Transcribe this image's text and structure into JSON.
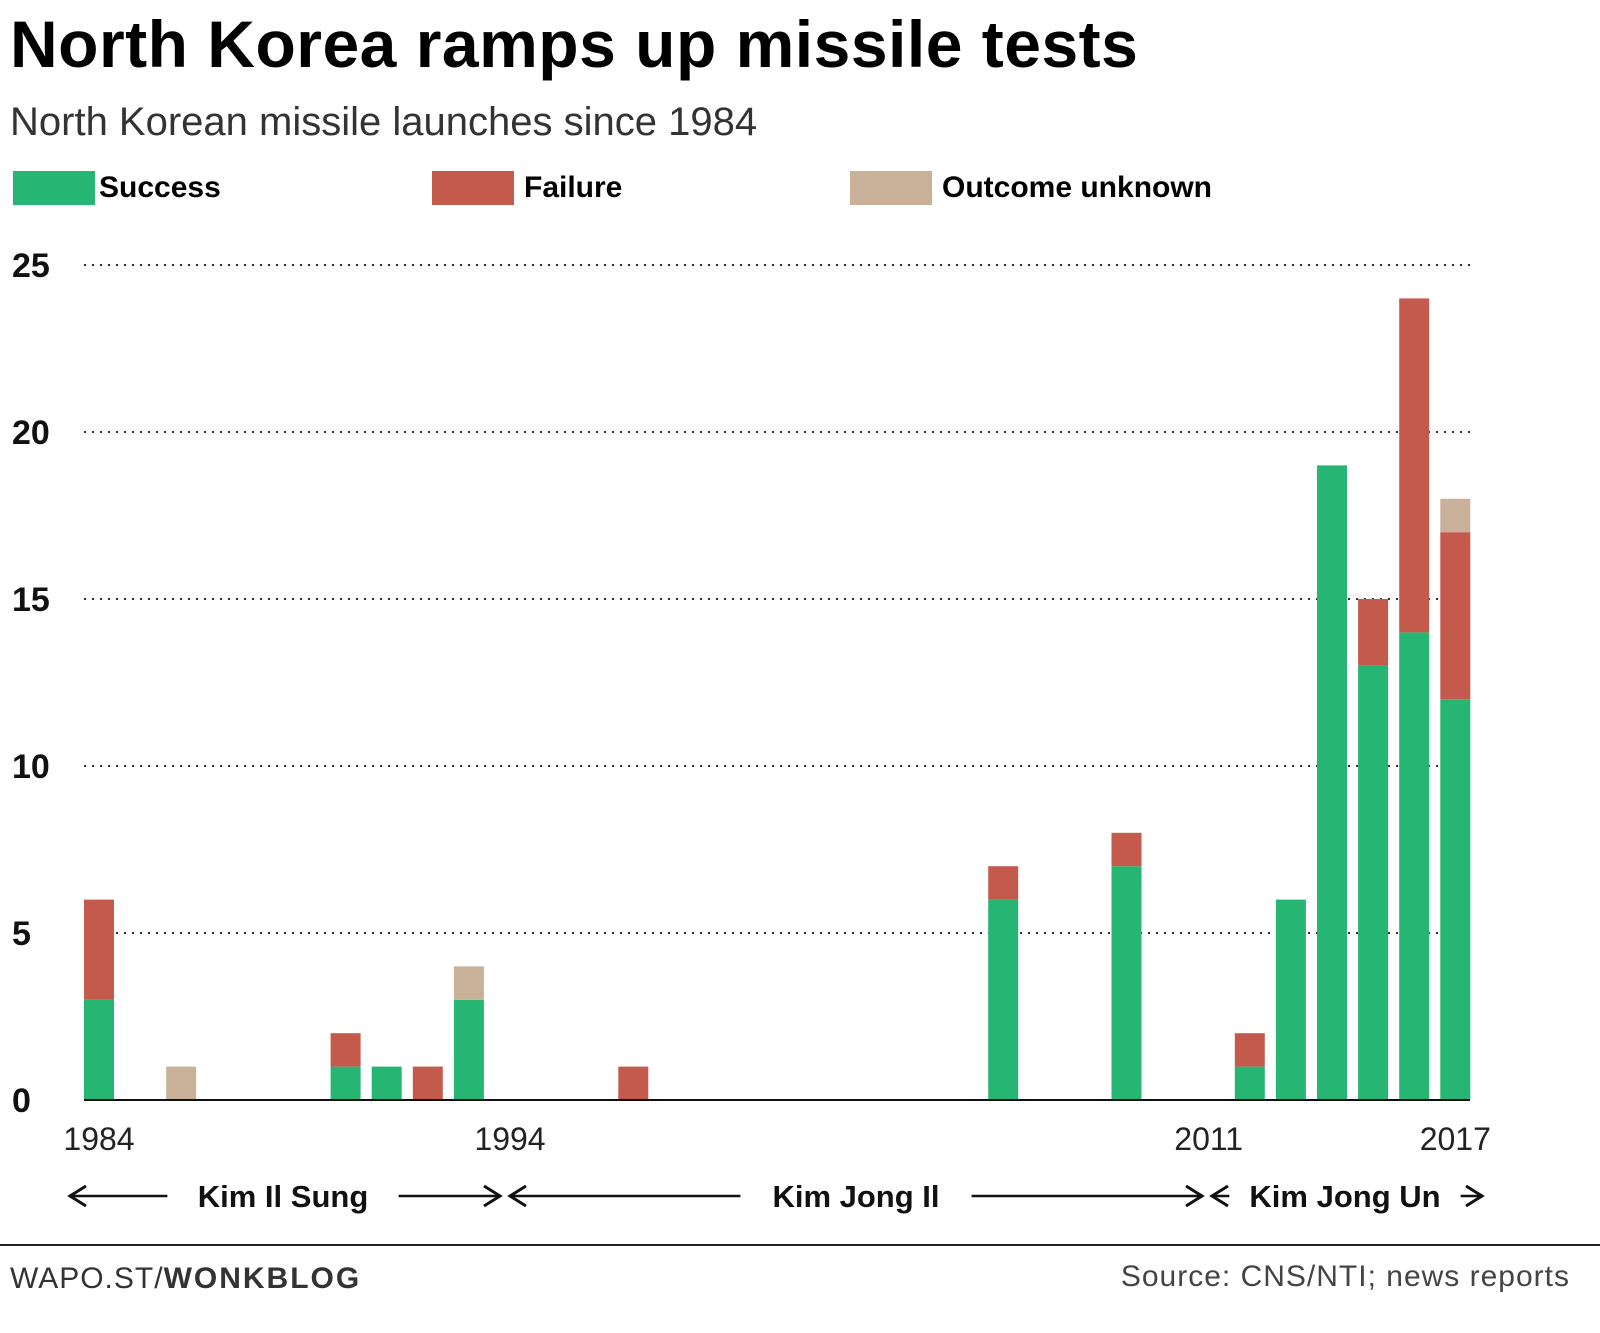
{
  "header": {
    "title": "North Korea ramps up missile tests",
    "subtitle": "North Korean missile launches since 1984"
  },
  "legend": [
    {
      "label": "Success",
      "color": "#27b574"
    },
    {
      "label": "Failure",
      "color": "#c45a4c"
    },
    {
      "label": "Outcome unknown",
      "color": "#c9b199"
    }
  ],
  "chart_data": {
    "type": "bar",
    "stacked": true,
    "title": "North Korea ramps up missile tests",
    "subtitle": "North Korean missile launches since 1984",
    "xlabel": "",
    "ylabel": "",
    "ylim": [
      0,
      25
    ],
    "yticks": [
      0,
      5,
      10,
      15,
      20,
      25
    ],
    "grid": true,
    "legend_position": "top",
    "x": [
      1984,
      1985,
      1986,
      1987,
      1988,
      1989,
      1990,
      1991,
      1992,
      1993,
      1994,
      1995,
      1996,
      1997,
      1998,
      1999,
      2000,
      2001,
      2002,
      2003,
      2004,
      2005,
      2006,
      2007,
      2008,
      2009,
      2010,
      2011,
      2012,
      2013,
      2014,
      2015,
      2016,
      2017
    ],
    "x_tick_labels": [
      {
        "year": 1984,
        "label": "1984"
      },
      {
        "year": 1994,
        "label": "1994"
      },
      {
        "year": 2011,
        "label": "2011"
      },
      {
        "year": 2017,
        "label": "2017"
      }
    ],
    "series": [
      {
        "name": "Success",
        "color": "#27b574",
        "values": [
          3,
          0,
          0,
          0,
          0,
          0,
          1,
          1,
          0,
          3,
          0,
          0,
          0,
          0,
          0,
          0,
          0,
          0,
          0,
          0,
          0,
          0,
          6,
          0,
          0,
          7,
          0,
          0,
          1,
          6,
          19,
          13,
          14,
          12
        ]
      },
      {
        "name": "Failure",
        "color": "#c45a4c",
        "values": [
          3,
          0,
          0,
          0,
          0,
          0,
          1,
          0,
          1,
          0,
          0,
          0,
          0,
          1,
          0,
          0,
          0,
          0,
          0,
          0,
          0,
          0,
          1,
          0,
          0,
          1,
          0,
          0,
          1,
          0,
          0,
          2,
          10,
          5
        ]
      },
      {
        "name": "Outcome unknown",
        "color": "#c9b199",
        "values": [
          0,
          0,
          1,
          0,
          0,
          0,
          0,
          0,
          0,
          1,
          0,
          0,
          0,
          0,
          0,
          0,
          0,
          0,
          0,
          0,
          0,
          0,
          0,
          0,
          0,
          0,
          0,
          0,
          0,
          0,
          0,
          0,
          0,
          1
        ]
      }
    ],
    "eras": [
      {
        "label": "Kim Il Sung",
        "start": 1984,
        "end": 1994
      },
      {
        "label": "Kim Jong Il",
        "start": 1994,
        "end": 2011
      },
      {
        "label": "Kim Jong Un",
        "start": 2011,
        "end": 2017
      }
    ]
  },
  "footer": {
    "left_prefix": "WAPO.ST/",
    "left_brand": "WONKBLOG",
    "source": "Source: CNS/NTI; news reports"
  }
}
